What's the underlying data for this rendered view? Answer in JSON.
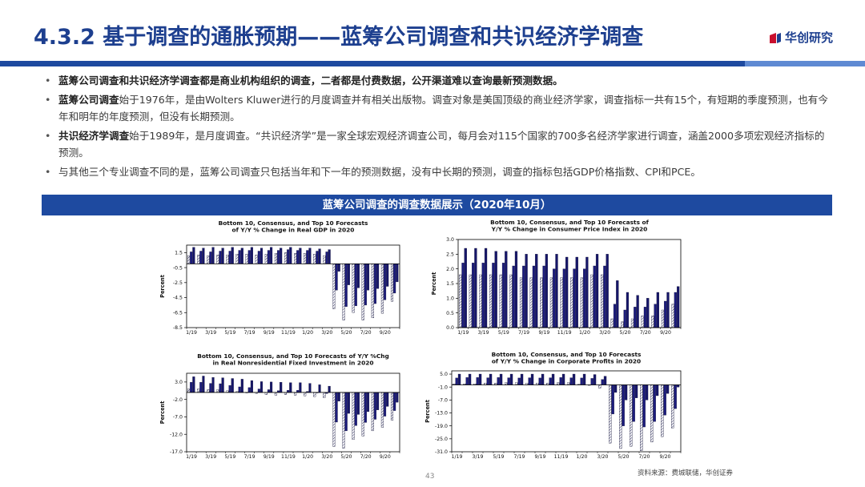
{
  "header": {
    "title": "4.3.2 基于调查的通胀预期——蓝筹公司调查和共识经济学调查",
    "logo_text": "华创研究"
  },
  "bullets": [
    {
      "bold": "蓝筹公司调查和共识经济学调查都是商业机构组织的调查，二者都是付费数据，公开渠道难以查询最新预测数据。",
      "text": ""
    },
    {
      "bold": "蓝筹公司调查",
      "text": "始于1976年，是由Wolters Kluwer进行的月度调查并有相关出版物。调查对象是美国顶级的商业经济学家，调查指标一共有15个，有短期的季度预测，也有今年和明年的年度预测，但没有长期预测。"
    },
    {
      "bold": "共识经济学调查",
      "text": "始于1989年，是月度调查。“共识经济学”是一家全球宏观经济调查公司，每月会对115个国家的700多名经济学家进行调查，涵盖2000多项宏观经济指标的预测。"
    },
    {
      "bold": "",
      "text": "与其他三个专业调查不同的是，蓝筹公司调查只包括当年和下一年的预测数据，没有中长期的预测，调查的指标包括GDP价格指数、CPI和PCE。"
    }
  ],
  "banner": "蓝筹公司调查的调查数据展示（2020年10月）",
  "source": "资料来源：费城联储，华创证券",
  "page_number": "43",
  "colors": {
    "brand": "#1d3f8f",
    "bar_dark": "#1c1c7e",
    "bar_navy": "#16166a"
  },
  "chart_data": [
    {
      "type": "bar",
      "title": [
        "Bottom 10, Consensus,  and Top 10 Forecasts",
        "of Y/Y % Change in Real GDP in 2020"
      ],
      "ylabel": "Percent",
      "ylim": [
        -8.5,
        2.5
      ],
      "yticks": [
        1.5,
        -0.5,
        -2.5,
        -4.5,
        -6.5,
        -8.5
      ],
      "xtick_labels": [
        "1/19",
        "3/19",
        "5/19",
        "7/19",
        "9/19",
        "11/19",
        "1/20",
        "3/20",
        "5/20",
        "7/20",
        "9/20"
      ],
      "series": [
        {
          "name": "Bottom 10",
          "values": [
            1.1,
            1.2,
            1.1,
            1.2,
            1.2,
            1.3,
            1.3,
            1.2,
            1.3,
            1.4,
            1.5,
            1.4,
            1.4,
            1.3,
            1.1,
            -6.0,
            -7.5,
            -6.5,
            -7.5,
            -7.2,
            -6.6,
            -5.0
          ]
        },
        {
          "name": "Consensus",
          "values": [
            1.6,
            1.7,
            1.6,
            1.7,
            1.7,
            1.8,
            1.8,
            1.7,
            1.8,
            1.8,
            1.9,
            1.8,
            1.8,
            1.7,
            1.6,
            -3.5,
            -5.7,
            -5.6,
            -5.5,
            -5.3,
            -4.8,
            -3.9
          ]
        },
        {
          "name": "Top 10",
          "values": [
            2.2,
            2.1,
            2.2,
            2.1,
            2.2,
            2.1,
            2.2,
            2.1,
            2.2,
            2.1,
            2.2,
            2.1,
            2.1,
            2.0,
            1.9,
            -1.0,
            -2.8,
            -3.2,
            -3.5,
            -3.3,
            -3.0,
            -2.4
          ]
        }
      ]
    },
    {
      "type": "bar",
      "title": [
        "Bottom 10, Consensus,  and Top 10 Forecasts of",
        "Y/Y % Change in Consumer Price Index in 2020"
      ],
      "ylabel": "Percent",
      "ylim": [
        0.0,
        3.0
      ],
      "yticks": [
        3.0,
        2.5,
        2.0,
        1.5,
        1.0,
        0.5,
        0.0
      ],
      "xtick_labels": [
        "1/19",
        "3/19",
        "5/19",
        "7/19",
        "9/19",
        "11/19",
        "1/20",
        "3/20",
        "5/20",
        "7/20",
        "9/20"
      ],
      "series": [
        {
          "name": "Bottom 10",
          "values": [
            1.8,
            1.8,
            1.8,
            1.8,
            1.8,
            1.8,
            1.7,
            1.7,
            1.7,
            1.7,
            1.7,
            1.7,
            1.7,
            1.8,
            1.8,
            0.3,
            0.2,
            0.3,
            0.4,
            0.4,
            0.6,
            0.8
          ]
        },
        {
          "name": "Consensus",
          "values": [
            2.2,
            2.2,
            2.2,
            2.2,
            2.2,
            2.1,
            2.1,
            2.1,
            2.1,
            2.0,
            2.0,
            2.0,
            2.0,
            2.1,
            2.1,
            0.8,
            0.6,
            0.7,
            0.7,
            0.8,
            0.9,
            1.2
          ]
        },
        {
          "name": "Top 10",
          "values": [
            2.7,
            2.7,
            2.7,
            2.6,
            2.6,
            2.6,
            2.5,
            2.5,
            2.5,
            2.5,
            2.4,
            2.4,
            2.4,
            2.5,
            2.5,
            1.6,
            1.2,
            1.1,
            1.0,
            1.2,
            1.2,
            1.4
          ]
        }
      ]
    },
    {
      "type": "bar",
      "title": [
        "Bottom 10, Consensus,  and Top 10 Forecasts of Y/Y %Chg",
        "in Real Nonresidential Fixed Investment in 2020"
      ],
      "ylabel": "Percent",
      "ylim": [
        -17.0,
        5.5
      ],
      "yticks": [
        3.0,
        -2.0,
        -7.0,
        -12.0,
        -17.0
      ],
      "xtick_labels": [
        "1/19",
        "3/19",
        "5/19",
        "7/19",
        "9/19",
        "11/19",
        "1/20",
        "3/20",
        "5/20",
        "7/20",
        "9/20"
      ],
      "series": [
        {
          "name": "Bottom 10",
          "values": [
            1.0,
            1.0,
            0.8,
            0.8,
            0.5,
            0.3,
            0.0,
            -0.3,
            -0.6,
            -0.8,
            -0.6,
            -0.8,
            -1.0,
            -1.2,
            -1.5,
            -15.5,
            -16.0,
            -13.5,
            -12.5,
            -11.0,
            -10.0,
            -8.0
          ]
        },
        {
          "name": "Consensus",
          "values": [
            2.9,
            2.9,
            2.6,
            2.5,
            2.0,
            1.6,
            1.4,
            1.0,
            0.8,
            0.5,
            0.6,
            0.6,
            0.3,
            0.0,
            -0.3,
            -8.5,
            -11.0,
            -9.5,
            -8.6,
            -7.7,
            -6.8,
            -5.2
          ]
        },
        {
          "name": "Top 10",
          "values": [
            4.5,
            4.7,
            4.3,
            4.2,
            4.0,
            3.8,
            3.4,
            3.1,
            3.0,
            2.9,
            2.8,
            2.8,
            2.6,
            2.2,
            1.8,
            -2.5,
            -6.0,
            -6.3,
            -5.5,
            -5.0,
            -4.0,
            -2.8
          ]
        }
      ]
    },
    {
      "type": "bar",
      "title": [
        "Bottom 10, Consensus,  and Top 10 Forecasts",
        "of Y/Y % Change in Corporate Profits in 2020"
      ],
      "ylabel": "Percent",
      "ylim": [
        -31.0,
        6.5
      ],
      "yticks": [
        5.0,
        -1.0,
        -7.0,
        -13.0,
        -19.0,
        -25.0,
        -31.0
      ],
      "xtick_labels": [
        "1/19",
        "3/19",
        "5/19",
        "7/19",
        "9/19",
        "11/19",
        "1/20",
        "3/20",
        "5/20",
        "7/20",
        "9/20"
      ],
      "series": [
        {
          "name": "Bottom 10",
          "values": [
            0.5,
            0.5,
            0.5,
            0.8,
            0.8,
            1.0,
            1.0,
            0.8,
            0.8,
            0.8,
            1.0,
            1.0,
            0.3,
            0.0,
            -1.5,
            -27.0,
            -29.5,
            -28.5,
            -30.5,
            -26.5,
            -24.0,
            -20.0
          ]
        },
        {
          "name": "Consensus",
          "values": [
            3.2,
            3.4,
            3.4,
            3.3,
            3.4,
            3.3,
            3.2,
            3.3,
            3.2,
            3.3,
            3.4,
            3.3,
            3.2,
            3.0,
            2.5,
            -13.5,
            -19.0,
            -17.0,
            -19.5,
            -17.0,
            -14.0,
            -11.0
          ]
        },
        {
          "name": "Top 10",
          "values": [
            5.0,
            5.0,
            5.0,
            5.0,
            5.0,
            5.0,
            5.0,
            5.0,
            5.0,
            5.0,
            5.0,
            5.0,
            5.0,
            4.8,
            4.0,
            -3.5,
            -7.0,
            -6.0,
            -7.0,
            -5.0,
            -4.0,
            -1.0
          ]
        }
      ]
    }
  ]
}
